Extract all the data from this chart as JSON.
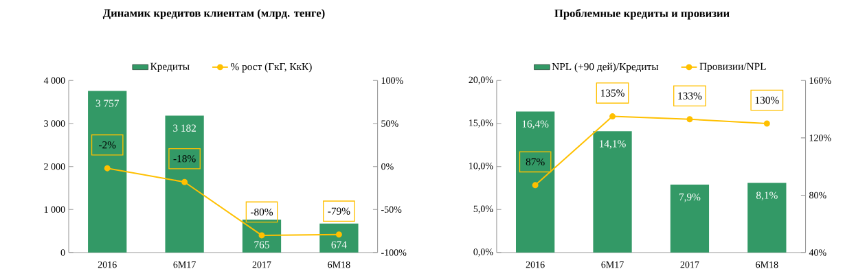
{
  "chart_data": [
    {
      "type": "bar",
      "title": "Динамик кредитов клиентам (млрд. тенге)",
      "categories": [
        "2016",
        "6M17",
        "2017",
        "6M18"
      ],
      "series": [
        {
          "name": "Кредиты",
          "color": "#339966",
          "values": [
            3757,
            3182,
            765,
            674
          ],
          "value_labels": [
            "3 757",
            "3 182",
            "765",
            "674"
          ]
        },
        {
          "name": "% рост (ГкГ, КкК)",
          "type": "line",
          "axis": "y2",
          "color": "#ffc000",
          "values": [
            -2,
            -18,
            -80,
            -79
          ],
          "value_labels": [
            "-2%",
            "-18%",
            "-80%",
            "-79%"
          ]
        }
      ],
      "ylim": [
        0,
        4000
      ],
      "yticks": [
        0,
        {
          "value": 1000,
          "label": "1 000"
        },
        {
          "value": 2000,
          "label": "2 000"
        },
        {
          "value": 3000,
          "label": "3 000"
        },
        {
          "value": 4000,
          "label": "4 000"
        }
      ],
      "y2lim": [
        -100,
        100
      ],
      "y2ticks": [
        {
          "value": -100,
          "label": "-100%"
        },
        {
          "value": -50,
          "label": "-50%"
        },
        {
          "value": 0,
          "label": "0%"
        },
        {
          "value": 50,
          "label": "50%"
        },
        {
          "value": 100,
          "label": "100%"
        }
      ],
      "legend": "top",
      "marker": "circle"
    },
    {
      "type": "bar",
      "title": "Проблемные кредиты и провизии",
      "categories": [
        "2016",
        "6M17",
        "2017",
        "6M18"
      ],
      "series": [
        {
          "name": "NPL (+90 дей)/Кредиты",
          "color": "#339966",
          "values": [
            16.4,
            14.1,
            7.9,
            8.1
          ],
          "value_labels": [
            "16,4%",
            "14,1%",
            "7,9%",
            "8,1%"
          ]
        },
        {
          "name": "Провизии/NPL",
          "type": "line",
          "axis": "y2",
          "color": "#ffc000",
          "values": [
            87,
            135,
            133,
            130
          ],
          "value_labels": [
            "87%",
            "135%",
            "133%",
            "130%"
          ]
        }
      ],
      "ylim": [
        0,
        20
      ],
      "yticks": [
        {
          "value": 0,
          "label": "0,0%"
        },
        {
          "value": 5,
          "label": "5,0%"
        },
        {
          "value": 10,
          "label": "10,0%"
        },
        {
          "value": 15,
          "label": "15,0%"
        },
        {
          "value": 20,
          "label": "20,0%"
        }
      ],
      "y2lim": [
        40,
        160
      ],
      "y2ticks": [
        {
          "value": 40,
          "label": "40%"
        },
        {
          "value": 80,
          "label": "80%"
        },
        {
          "value": 120,
          "label": "120%"
        },
        {
          "value": 160,
          "label": "160%"
        }
      ],
      "legend": "top",
      "marker": "circle"
    }
  ]
}
